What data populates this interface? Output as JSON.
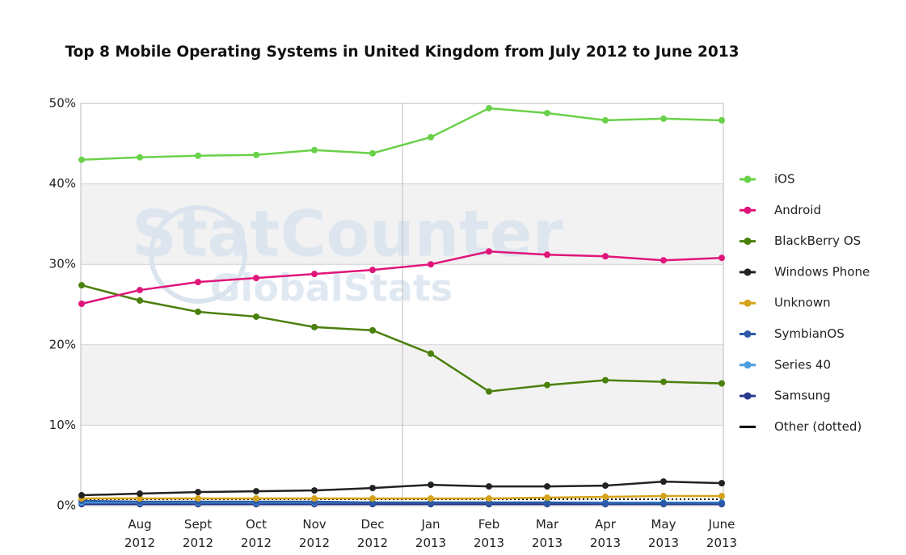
{
  "chart_data": {
    "type": "line",
    "title": "Top 8 Mobile Operating Systems in United Kingdom from July 2012 to June 2013",
    "watermark": [
      "StatCounter",
      "GlobalStats"
    ],
    "categories": [
      null,
      "Aug 2012",
      "Sept 2012",
      "Oct 2012",
      "Nov 2012",
      "Dec 2012",
      "Jan 2013",
      "Feb 2013",
      "Mar 2013",
      "Apr 2013",
      "May 2013",
      "June 2013"
    ],
    "series": [
      {
        "name": "iOS",
        "color": "#6ad14a",
        "values": [
          43.0,
          43.3,
          43.5,
          43.6,
          44.2,
          43.8,
          45.8,
          49.4,
          48.8,
          47.9,
          48.1,
          47.9
        ]
      },
      {
        "name": "Android",
        "color": "#e0157a",
        "values": [
          25.1,
          26.8,
          27.8,
          28.3,
          28.8,
          29.3,
          30.0,
          31.6,
          31.2,
          31.0,
          30.5,
          30.8
        ]
      },
      {
        "name": "BlackBerry OS",
        "color": "#4a800c",
        "values": [
          27.4,
          25.5,
          24.1,
          23.5,
          22.2,
          21.8,
          18.9,
          14.2,
          15.0,
          15.6,
          15.4,
          15.2
        ]
      },
      {
        "name": "Windows Phone",
        "color": "#222222",
        "values": [
          1.3,
          1.5,
          1.7,
          1.8,
          1.9,
          2.2,
          2.6,
          2.4,
          2.4,
          2.5,
          3.0,
          2.8
        ]
      },
      {
        "name": "Unknown",
        "color": "#d4a31a",
        "values": [
          0.9,
          0.9,
          0.9,
          0.9,
          0.9,
          0.9,
          0.9,
          0.9,
          1.0,
          1.1,
          1.2,
          1.2
        ]
      },
      {
        "name": "SymbianOS",
        "color": "#2b5ba8",
        "values": [
          0.6,
          0.5,
          0.5,
          0.5,
          0.5,
          0.4,
          0.4,
          0.4,
          0.4,
          0.3,
          0.3,
          0.3
        ]
      },
      {
        "name": "Series 40",
        "color": "#4d9de0",
        "values": [
          0.4,
          0.4,
          0.4,
          0.4,
          0.4,
          0.4,
          0.4,
          0.4,
          0.4,
          0.4,
          0.4,
          0.4
        ]
      },
      {
        "name": "Samsung",
        "color": "#2a3a8c",
        "values": [
          0.2,
          0.2,
          0.2,
          0.2,
          0.2,
          0.2,
          0.2,
          0.2,
          0.2,
          0.2,
          0.2,
          0.2
        ]
      },
      {
        "name": "Other (dotted)",
        "color": "#000000",
        "style": "dotted",
        "markers": false,
        "values": [
          0.8,
          0.8,
          0.8,
          0.8,
          0.8,
          0.8,
          0.8,
          0.8,
          0.8,
          0.8,
          0.8,
          0.8
        ]
      }
    ],
    "ylim": [
      0,
      50
    ],
    "yticks": [
      {
        "value": 0,
        "label": "0%"
      },
      {
        "value": 10,
        "label": "10%"
      },
      {
        "value": 20,
        "label": "20%"
      },
      {
        "value": 30,
        "label": "30%"
      },
      {
        "value": 40,
        "label": "40%"
      },
      {
        "value": 50,
        "label": "50%"
      }
    ],
    "grid": "alternate-bands",
    "legend": "right"
  }
}
